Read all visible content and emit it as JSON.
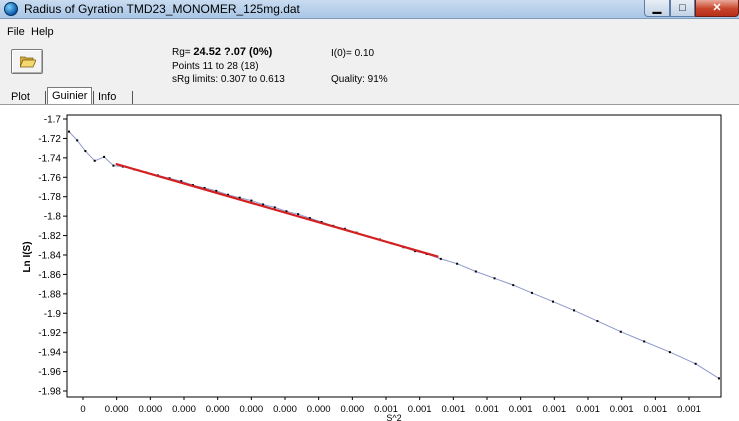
{
  "window": {
    "title": "Radius of Gyration    TMD23_MONOMER_125mg.dat",
    "min_glyph": "▁",
    "max_glyph": "□",
    "close_glyph": "✕"
  },
  "menu": {
    "file": "File",
    "help": "Help"
  },
  "info": {
    "rg_label": "Rg=",
    "rg_value": "24.52 ?.07 (0%)",
    "points": "Points 11 to 28 (18)",
    "srg_limits": "sRg limits: 0.307 to 0.613",
    "i0": "I(0)= 0.10",
    "quality": "Quality: 91%"
  },
  "tabs": [
    {
      "label": "Plot"
    },
    {
      "label": "Guinier",
      "active": true
    },
    {
      "label": "Info"
    }
  ],
  "colors": {
    "data_line": "#8c98cc",
    "fit_line": "#d42020",
    "marker": "#000000"
  },
  "chart_data": {
    "type": "line",
    "title": "",
    "xlabel": "S^2",
    "ylabel": "Ln I(S)",
    "ylim": [
      -1.98,
      -1.7
    ],
    "y_ticks": [
      -1.7,
      -1.72,
      -1.74,
      -1.76,
      -1.78,
      -1.8,
      -1.82,
      -1.84,
      -1.86,
      -1.88,
      -1.9,
      -1.92,
      -1.94,
      -1.96,
      -1.98
    ],
    "y_tick_labels": [
      "-1.7",
      "-1.72",
      "-1.74",
      "-1.76",
      "-1.78",
      "-1.8",
      "-1.82",
      "-1.84",
      "-1.86",
      "-1.88",
      "-1.9",
      "-1.92",
      "-1.94",
      "-1.96",
      "-1.98"
    ],
    "x_tick_labels": [
      "0",
      "0.000",
      "0.000",
      "0.000",
      "0.000",
      "0.000",
      "0.000",
      "0.000",
      "0.000",
      "0.001",
      "0.001",
      "0.001",
      "0.001",
      "0.001",
      "0.001",
      "0.001",
      "0.001",
      "0.001",
      "0.001"
    ],
    "series": [
      {
        "values": [
          [
            0.0,
            -1.713
          ],
          [
            0.35,
            -1.722
          ],
          [
            0.7,
            -1.733
          ],
          [
            1.1,
            -1.743
          ],
          [
            1.5,
            -1.739
          ],
          [
            1.9,
            -1.748
          ],
          [
            2.3,
            -1.749
          ],
          [
            2.8,
            -1.752
          ],
          [
            3.3,
            -1.755
          ],
          [
            3.8,
            -1.758
          ],
          [
            4.3,
            -1.761
          ],
          [
            4.8,
            -1.764
          ],
          [
            5.3,
            -1.768
          ],
          [
            5.8,
            -1.771
          ],
          [
            6.3,
            -1.774
          ],
          [
            6.8,
            -1.778
          ],
          [
            7.3,
            -1.781
          ],
          [
            7.8,
            -1.784
          ],
          [
            8.3,
            -1.788
          ],
          [
            8.8,
            -1.791
          ],
          [
            9.3,
            -1.795
          ],
          [
            9.8,
            -1.798
          ],
          [
            10.3,
            -1.802
          ],
          [
            10.8,
            -1.806
          ],
          [
            11.3,
            -1.81
          ],
          [
            11.8,
            -1.813
          ],
          [
            12.3,
            -1.817
          ],
          [
            12.8,
            -1.821
          ],
          [
            13.3,
            -1.824
          ],
          [
            13.8,
            -1.828
          ],
          [
            14.3,
            -1.832
          ],
          [
            14.8,
            -1.836
          ],
          [
            15.3,
            -1.839
          ],
          [
            15.9,
            -1.844
          ],
          [
            16.6,
            -1.849
          ],
          [
            17.4,
            -1.857
          ],
          [
            18.2,
            -1.864
          ],
          [
            19.0,
            -1.871
          ],
          [
            19.8,
            -1.879
          ],
          [
            20.7,
            -1.888
          ],
          [
            21.6,
            -1.897
          ],
          [
            22.6,
            -1.908
          ],
          [
            23.6,
            -1.919
          ],
          [
            24.6,
            -1.929
          ],
          [
            25.7,
            -1.94
          ],
          [
            26.8,
            -1.952
          ],
          [
            27.8,
            -1.967
          ]
        ]
      },
      {
        "values": [
          [
            2.0,
            -1.7462
          ],
          [
            15.8,
            -1.8418
          ]
        ]
      }
    ]
  }
}
